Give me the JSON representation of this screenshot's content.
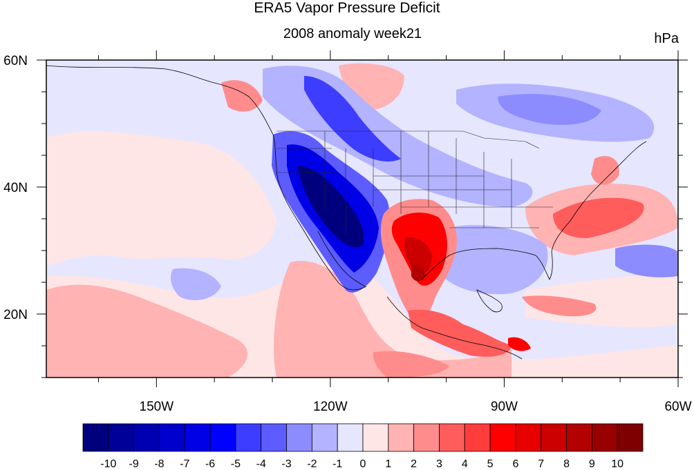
{
  "title": "ERA5 Vapor Pressure Deficit",
  "subtitle": "2008 anomaly week21",
  "units": "hPa",
  "map": {
    "lon_range": [
      -169,
      -60
    ],
    "lat_range": [
      10,
      60
    ],
    "x_ticks": [
      {
        "lon": -150,
        "label": "150W"
      },
      {
        "lon": -120,
        "label": "120W"
      },
      {
        "lon": -90,
        "label": "90W"
      },
      {
        "lon": -60,
        "label": "60W"
      }
    ],
    "y_ticks": [
      {
        "lat": 60,
        "label": "60N"
      },
      {
        "lat": 40,
        "label": "40N"
      },
      {
        "lat": 20,
        "label": "20N"
      }
    ]
  },
  "colorbar": {
    "labels": [
      "-10",
      "-9",
      "-8",
      "-7",
      "-6",
      "-5",
      "-4",
      "-3",
      "-2",
      "-1",
      "0",
      "1",
      "2",
      "3",
      "4",
      "5",
      "6",
      "7",
      "8",
      "9",
      "10"
    ],
    "colors": [
      "#00007f",
      "#000099",
      "#0000b3",
      "#0000cc",
      "#0000e6",
      "#0000ff",
      "#3d3dff",
      "#5c5cff",
      "#8c8cff",
      "#b3b3ff",
      "#e6e6ff",
      "#ffe6e6",
      "#ffb3b3",
      "#ff8c8c",
      "#ff5c5c",
      "#ff3d3d",
      "#ff0000",
      "#e60000",
      "#cc0000",
      "#b30000",
      "#990000",
      "#7f0000"
    ]
  }
}
